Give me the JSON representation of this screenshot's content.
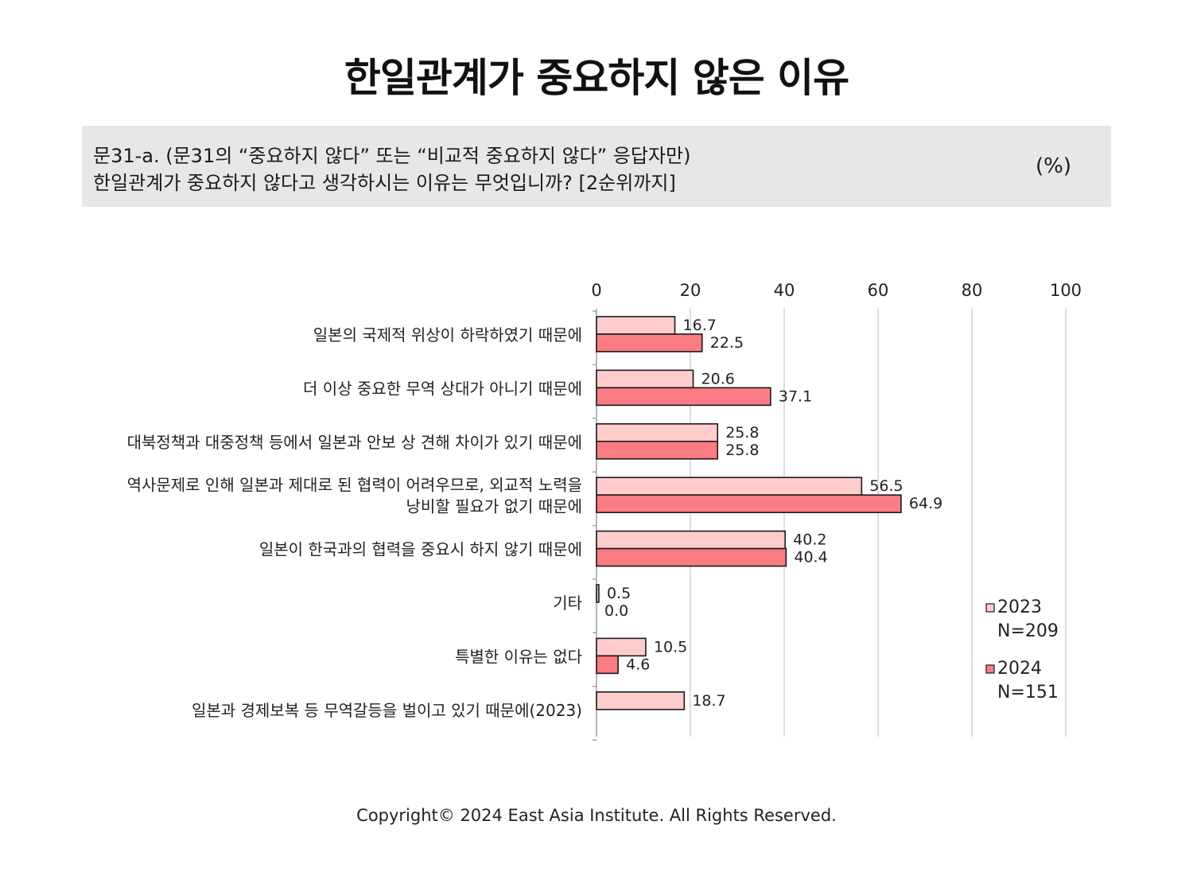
{
  "title": "한일관계가 중요하지 않은 이유",
  "question": {
    "line1": "문31-a. (문31의 “중요하지 않다” 또는 “비교적 중요하지 않다” 응답자만)",
    "line2": "한일관계가 중요하지 않다고 생각하시는 이유는 무엇입니까? [2순위까지]",
    "unit": "(%)"
  },
  "colors": {
    "series_2023": "#ffcccc",
    "series_2024": "#fc7c84",
    "bar_border": "#1a1a1a",
    "grid": "#d4d4d4",
    "question_bg": "#e8e6e6"
  },
  "chart_data": {
    "type": "bar",
    "orientation": "horizontal",
    "categories": [
      [
        "일본의 국제적 위상이 하락하였기 때문에"
      ],
      [
        "더 이상 중요한 무역 상대가 아니기 때문에"
      ],
      [
        "대북정책과 대중정책 등에서 일본과 안보 상 견해 차이가 있기 때문에"
      ],
      [
        "역사문제로 인해 일본과 제대로 된 협력이 어려우므로, 외교적 노력을",
        "낭비할 필요가 없기 때문에"
      ],
      [
        "일본이 한국과의 협력을 중요시 하지 않기 때문에"
      ],
      [
        "기타"
      ],
      [
        "특별한 이유는 없다"
      ],
      [
        "일본과 경제보복 등 무역갈등을 벌이고 있기 때문에(2023)"
      ]
    ],
    "series": [
      {
        "legend_year": "2023",
        "legend_n": "N=209",
        "values": [
          16.7,
          20.6,
          25.8,
          56.5,
          40.2,
          0.5,
          10.5,
          18.7
        ],
        "labels": [
          "16.7",
          "20.6",
          "25.8",
          "56.5",
          "40.2",
          "0.5",
          "10.5",
          "18.7"
        ]
      },
      {
        "legend_year": "2024",
        "legend_n": "N=151",
        "values": [
          22.5,
          37.1,
          25.8,
          64.9,
          40.4,
          0.0,
          4.6,
          null
        ],
        "labels": [
          "22.5",
          "37.1",
          "25.8",
          "64.9",
          "40.4",
          "0.0",
          "4.6",
          null
        ]
      }
    ],
    "xlim": [
      0,
      100
    ],
    "xticks": [
      0,
      20,
      40,
      60,
      80,
      100
    ],
    "xtick_labels": [
      "0",
      "20",
      "40",
      "60",
      "80",
      "100"
    ],
    "axis_position": "top",
    "grid": true,
    "legend_position": "right-bottom"
  },
  "footer": "Copyright© 2024 East Asia Institute. All Rights Reserved."
}
